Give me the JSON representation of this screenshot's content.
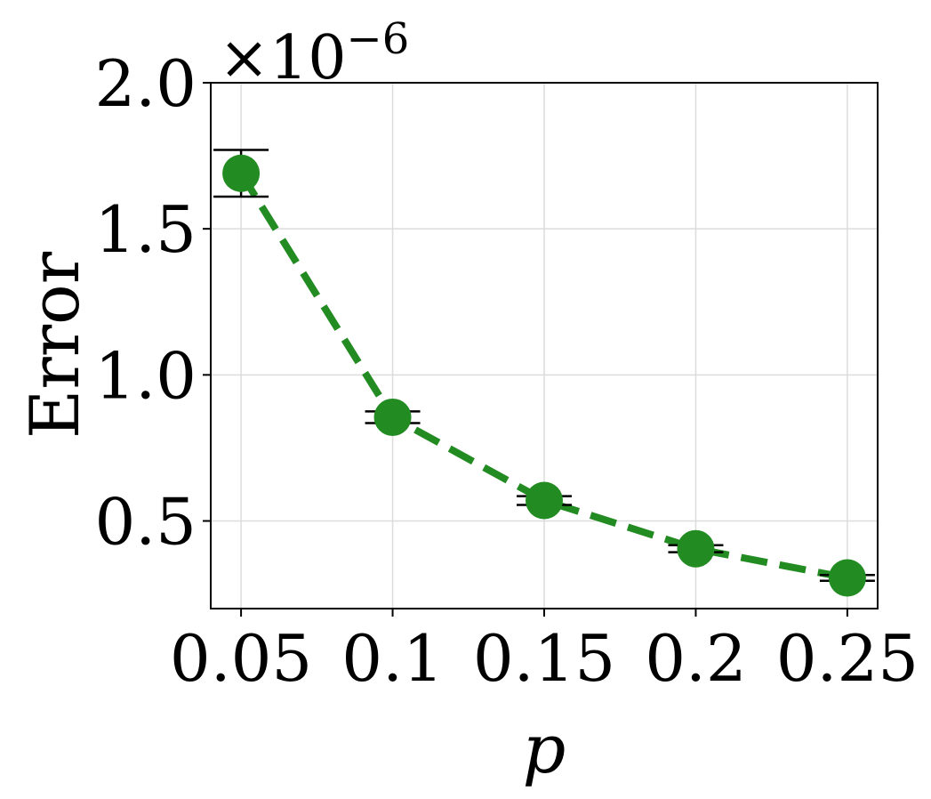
{
  "chart_data": {
    "type": "line",
    "title": "",
    "xlabel": "p",
    "ylabel": "Error",
    "scale_multiplier": {
      "base": "×10",
      "exponent": "−6"
    },
    "x": [
      0.05,
      0.1,
      0.15,
      0.2,
      0.25
    ],
    "x_tick_values": [
      0.05,
      0.1,
      0.15,
      0.2,
      0.25
    ],
    "x_tick_labels": [
      "0.05",
      "0.1",
      "0.15",
      "0.2",
      "0.25"
    ],
    "y_tick_values": [
      0.5,
      1.0,
      1.5,
      2.0
    ],
    "y_tick_labels": [
      "0.5",
      "1.0",
      "1.5",
      "2.0"
    ],
    "xlim": [
      0.04,
      0.26
    ],
    "ylim": [
      0.2,
      2.0
    ],
    "grid": true,
    "series": [
      {
        "values": [
          1.69,
          0.855,
          0.57,
          0.405,
          0.305
        ],
        "error": [
          0.08,
          0.02,
          0.015,
          0.012,
          0.01
        ],
        "color": "#228b22",
        "linestyle": "dashed",
        "marker": "circle"
      }
    ]
  }
}
